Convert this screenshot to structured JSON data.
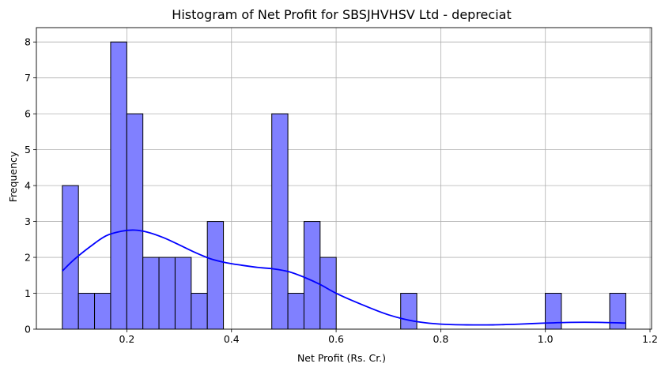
{
  "chart_data": {
    "type": "bar",
    "title": "Histogram of Net Profit for SBSJHVHSV Ltd - depreciat",
    "xlabel": "Net Profit (Rs. Cr.)",
    "ylabel": "Frequency",
    "xlim": [
      0.027,
      1.203
    ],
    "ylim": [
      0,
      8.4
    ],
    "x_ticks": [
      0.2,
      0.4,
      0.6,
      0.8,
      1.0,
      1.2
    ],
    "x_tick_labels": [
      "0.2",
      "0.4",
      "0.6",
      "0.8",
      "1.0",
      "1.2"
    ],
    "y_ticks": [
      0,
      1,
      2,
      3,
      4,
      5,
      6,
      7,
      8
    ],
    "y_tick_labels": [
      "0",
      "1",
      "2",
      "3",
      "4",
      "5",
      "6",
      "7",
      "8"
    ],
    "grid": true,
    "bar_color": "#8080ff",
    "bar_edge_color": "#000000",
    "kde_color": "#0000ff",
    "bins": [
      {
        "start": 0.0766,
        "end": 0.1074,
        "count": 4
      },
      {
        "start": 0.1074,
        "end": 0.1382,
        "count": 1
      },
      {
        "start": 0.1382,
        "end": 0.169,
        "count": 1
      },
      {
        "start": 0.169,
        "end": 0.1998,
        "count": 8
      },
      {
        "start": 0.1998,
        "end": 0.2306,
        "count": 6
      },
      {
        "start": 0.2306,
        "end": 0.2614,
        "count": 2
      },
      {
        "start": 0.2614,
        "end": 0.2922,
        "count": 2
      },
      {
        "start": 0.2922,
        "end": 0.323,
        "count": 2
      },
      {
        "start": 0.323,
        "end": 0.3538,
        "count": 1
      },
      {
        "start": 0.3538,
        "end": 0.3846,
        "count": 3
      },
      {
        "start": 0.477,
        "end": 0.5078,
        "count": 6
      },
      {
        "start": 0.5078,
        "end": 0.5386,
        "count": 1
      },
      {
        "start": 0.5386,
        "end": 0.5694,
        "count": 3
      },
      {
        "start": 0.5694,
        "end": 0.6002,
        "count": 2
      },
      {
        "start": 0.7234,
        "end": 0.7542,
        "count": 1
      },
      {
        "start": 0.9998,
        "end": 1.0306,
        "count": 1
      },
      {
        "start": 1.123,
        "end": 1.1538,
        "count": 1
      }
    ],
    "kde": {
      "x": [
        0.0766,
        0.1,
        0.13,
        0.16,
        0.19,
        0.215,
        0.24,
        0.27,
        0.3,
        0.33,
        0.36,
        0.39,
        0.42,
        0.45,
        0.48,
        0.51,
        0.54,
        0.57,
        0.6,
        0.65,
        0.7,
        0.75,
        0.8,
        0.85,
        0.9,
        0.95,
        1.0,
        1.05,
        1.1,
        1.1538
      ],
      "y": [
        1.62,
        1.95,
        2.3,
        2.6,
        2.73,
        2.76,
        2.7,
        2.55,
        2.35,
        2.14,
        1.96,
        1.85,
        1.78,
        1.72,
        1.68,
        1.6,
        1.44,
        1.24,
        1.0,
        0.68,
        0.4,
        0.22,
        0.14,
        0.12,
        0.12,
        0.14,
        0.17,
        0.19,
        0.19,
        0.17
      ]
    }
  }
}
